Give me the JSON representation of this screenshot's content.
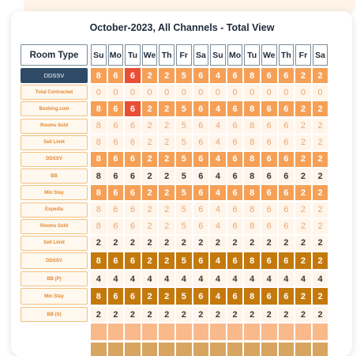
{
  "title": "October-2023, All Channels - Total View",
  "header_label": "Room Type",
  "days": [
    "Su",
    "Mo",
    "Tu",
    "We",
    "Th",
    "Fr",
    "Sa",
    "Su",
    "Mo",
    "Tu",
    "We",
    "Th",
    "Fr",
    "Sa"
  ],
  "rows": [
    {
      "label": "DDSSV",
      "style": "orange",
      "values": [
        "8",
        "6",
        "6",
        "2",
        "2",
        "5",
        "6",
        "4",
        "6",
        "8",
        "6",
        "6",
        "2",
        "2"
      ]
    },
    {
      "label": "Total Contracted",
      "style": "cream-light",
      "values": [
        "0",
        "0",
        "0",
        "0",
        "0",
        "0",
        "0",
        "0",
        "0",
        "0",
        "0",
        "0",
        "0",
        "0"
      ]
    },
    {
      "label": "Booking.com",
      "style": "orange",
      "values": [
        "8",
        "6",
        "6",
        "2",
        "2",
        "5",
        "6",
        "4",
        "6",
        "8",
        "6",
        "6",
        "2",
        "2"
      ]
    },
    {
      "label": "Rooms Sold",
      "style": "cream-light",
      "values": [
        "8",
        "6",
        "6",
        "2",
        "2",
        "5",
        "6",
        "4",
        "6",
        "8",
        "6",
        "6",
        "2",
        "2"
      ]
    },
    {
      "label": "Sell Limit",
      "style": "cream-light",
      "values": [
        "8",
        "6",
        "6",
        "2",
        "2",
        "5",
        "6",
        "4",
        "6",
        "8",
        "6",
        "6",
        "2",
        "2"
      ]
    },
    {
      "label": "DDSSV",
      "style": "orange",
      "values": [
        "8",
        "6",
        "6",
        "2",
        "2",
        "5",
        "6",
        "4",
        "6",
        "8",
        "6",
        "6",
        "2",
        "2"
      ]
    },
    {
      "label": "BB",
      "style": "cream-dark",
      "values": [
        "8",
        "6",
        "6",
        "2",
        "2",
        "5",
        "6",
        "4",
        "6",
        "8",
        "6",
        "6",
        "2",
        "2"
      ]
    },
    {
      "label": "Min Stay",
      "style": "orange",
      "values": [
        "8",
        "6",
        "6",
        "2",
        "2",
        "5",
        "6",
        "4",
        "6",
        "8",
        "6",
        "6",
        "2",
        "2"
      ]
    },
    {
      "label": "Expedia",
      "style": "cream-light",
      "values": [
        "8",
        "6",
        "6",
        "2",
        "2",
        "5",
        "6",
        "4",
        "6",
        "8",
        "6",
        "6",
        "2",
        "2"
      ]
    },
    {
      "label": "Rooms Sold",
      "style": "cream-light",
      "values": [
        "8",
        "6",
        "6",
        "2",
        "2",
        "5",
        "6",
        "4",
        "6",
        "8",
        "6",
        "6",
        "2",
        "2"
      ]
    },
    {
      "label": "Sell Limit",
      "style": "cream-dark",
      "values": [
        "2",
        "2",
        "2",
        "2",
        "2",
        "2",
        "2",
        "2",
        "2",
        "2",
        "2",
        "2",
        "2",
        "2"
      ]
    },
    {
      "label": "DDSSV",
      "style": "brown",
      "values": [
        "8",
        "6",
        "6",
        "2",
        "2",
        "5",
        "6",
        "4",
        "6",
        "8",
        "6",
        "6",
        "2",
        "2"
      ]
    },
    {
      "label": "BB (P)",
      "style": "cream-dark",
      "values": [
        "4",
        "4",
        "4",
        "4",
        "4",
        "4",
        "4",
        "4",
        "4",
        "4",
        "4",
        "4",
        "4",
        "4"
      ]
    },
    {
      "label": "Min Stay",
      "style": "brown",
      "values": [
        "8",
        "6",
        "6",
        "2",
        "2",
        "5",
        "6",
        "4",
        "6",
        "8",
        "6",
        "6",
        "2",
        "2"
      ]
    },
    {
      "label": "BB (S)",
      "style": "cream-dark",
      "values": [
        "2",
        "2",
        "2",
        "2",
        "2",
        "2",
        "2",
        "2",
        "2",
        "2",
        "2",
        "2",
        "2",
        "2"
      ]
    },
    {
      "label": "",
      "style": "peach",
      "values": [
        "",
        "",
        "",
        "",
        "",
        "",
        "",
        "",
        "",
        "",
        "",
        "",
        "",
        ""
      ]
    },
    {
      "label": "",
      "style": "tan",
      "values": [
        "",
        "",
        "",
        "",
        "",
        "",
        "",
        "",
        "",
        "",
        "",
        "",
        "",
        ""
      ]
    }
  ],
  "colors": {
    "orange": "#f5a056",
    "red": "#ea4e34",
    "brown": "#c4790c",
    "navy": "#2e4a66",
    "label_text": "#e3892f"
  }
}
